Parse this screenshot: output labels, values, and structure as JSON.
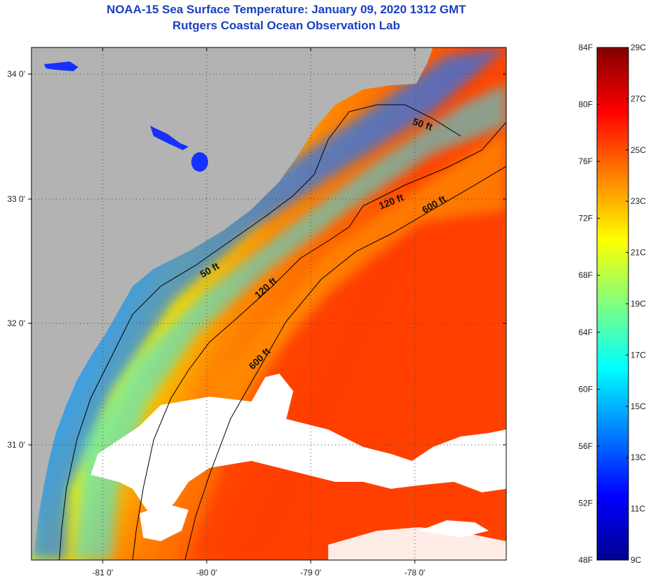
{
  "header": {
    "title": "NOAA-15 Sea Surface Temperature:  January 09, 2020 1312 GMT",
    "subtitle": "Rutgers Coastal Ocean Observation Lab"
  },
  "map": {
    "lat_labels": [
      "34 0'",
      "33 0'",
      "32 0'",
      "31 0'"
    ],
    "lon_labels": [
      "-81 0'",
      "-80 0'",
      "-79 0'",
      "-78 0'"
    ],
    "contour_labels": [
      "50 ft",
      "50 ft",
      "120 ft",
      "120 ft",
      "600 ft",
      "600 ft"
    ]
  },
  "colorbar": {
    "fahrenheit_labels": [
      "84F",
      "80F",
      "76F",
      "72F",
      "68F",
      "64F",
      "60F",
      "56F",
      "52F",
      "48F"
    ],
    "celsius_labels": [
      "29C",
      "27C",
      "25C",
      "23C",
      "21C",
      "19C",
      "17C",
      "15C",
      "13C",
      "11C",
      "9C"
    ],
    "colors": [
      "#00008f",
      "#0000ff",
      "#0080ff",
      "#00ffff",
      "#80ff80",
      "#ffff00",
      "#ff8000",
      "#ff0000",
      "#800000"
    ]
  }
}
